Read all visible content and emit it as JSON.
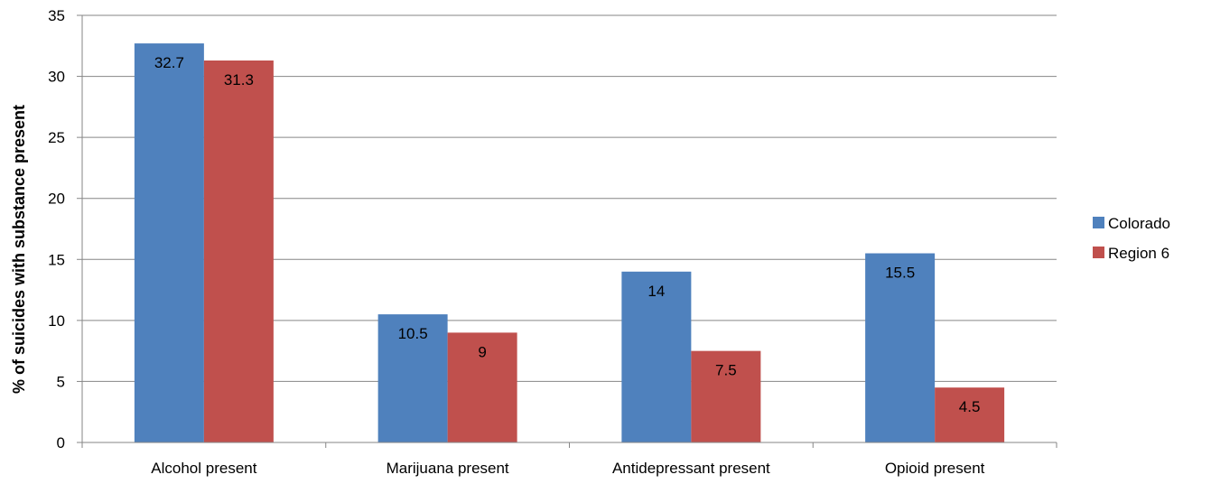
{
  "chart_data": {
    "type": "bar",
    "title": "",
    "xlabel": "",
    "ylabel": "% of suicides with substance present",
    "categories": [
      "Alcohol present",
      "Marijuana present",
      "Antidepressant present",
      "Opioid present"
    ],
    "series": [
      {
        "name": "Colorado",
        "color": "#4F81BD",
        "values": [
          32.7,
          10.5,
          14,
          15.5
        ],
        "labels": [
          "32.7",
          "10.5",
          "14",
          "15.5"
        ]
      },
      {
        "name": "Region 6",
        "color": "#C0504D",
        "values": [
          31.3,
          9,
          7.5,
          4.5
        ],
        "labels": [
          "31.3",
          "9",
          "7.5",
          "4.5"
        ]
      }
    ],
    "ylim": [
      0,
      35
    ],
    "yticks": [
      0,
      5,
      10,
      15,
      20,
      25,
      30,
      35
    ],
    "grid": true,
    "legend_position": "right"
  }
}
